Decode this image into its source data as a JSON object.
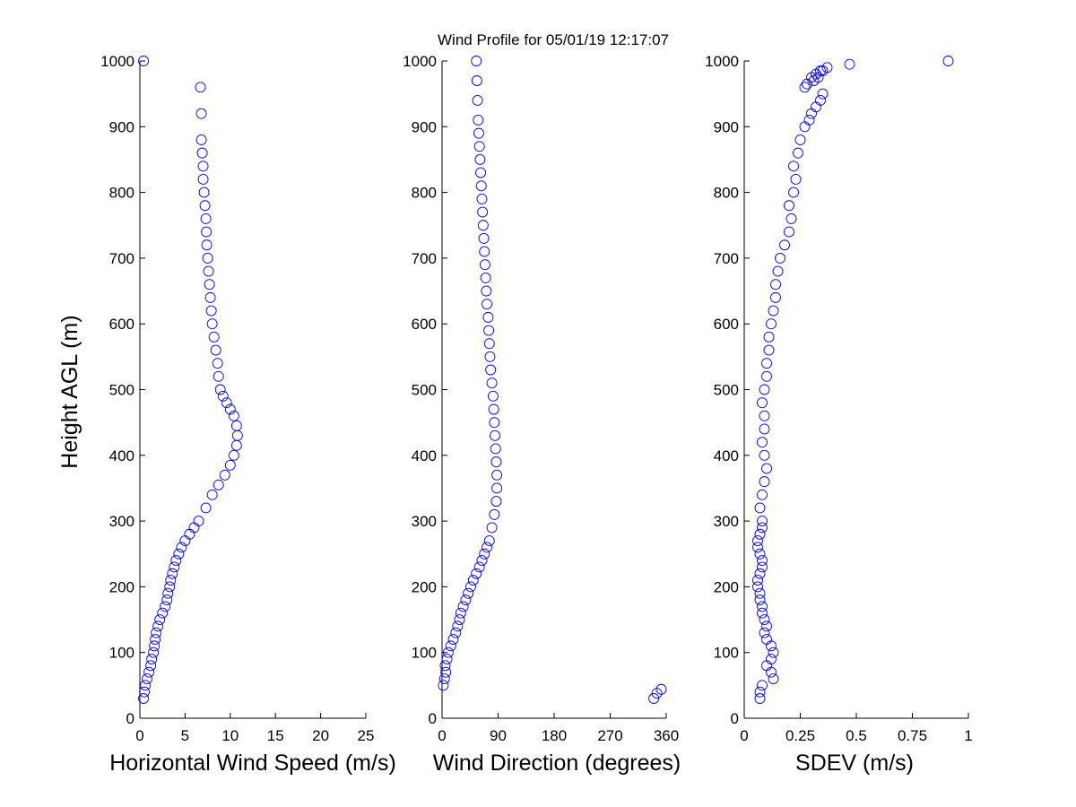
{
  "figure": {
    "title": "Wind Profile for  05/01/19 12:17:07"
  },
  "chart_data": [
    {
      "type": "scatter",
      "xlabel": "Horizontal Wind Speed (m/s)",
      "ylabel": "Height AGL (m)",
      "xlim": [
        0,
        25
      ],
      "ylim": [
        0,
        1000
      ],
      "xticks": [
        0,
        5,
        10,
        15,
        20,
        25
      ],
      "yticks": [
        0,
        100,
        200,
        300,
        400,
        500,
        600,
        700,
        800,
        900,
        1000
      ],
      "xtick_labels": [
        "0",
        "5",
        "10",
        "15",
        "20",
        "25"
      ],
      "ytick_labels": [
        "0",
        "100",
        "200",
        "300",
        "400",
        "500",
        "600",
        "700",
        "800",
        "900",
        "1000"
      ],
      "grid": false,
      "marker": "open-circle",
      "color": "#0000ff",
      "series": [
        {
          "x": [
            0.4,
            0.5,
            0.6,
            0.8,
            1.0,
            1.2,
            1.3,
            1.5,
            1.6,
            1.7,
            1.8,
            2.0,
            2.2,
            2.5,
            2.8,
            3.0,
            3.1,
            3.3,
            3.4,
            3.6,
            3.8,
            4.0,
            4.3,
            4.6,
            5.0,
            5.5,
            6.0,
            6.5,
            7.3,
            8.0,
            8.7,
            9.4,
            10.0,
            10.4,
            10.7,
            10.8,
            10.7,
            10.4,
            10.0,
            9.6,
            9.2,
            8.9,
            8.7,
            8.6,
            8.4,
            8.2,
            8.0,
            7.9,
            7.8,
            7.7,
            7.6,
            7.5,
            7.4,
            7.35,
            7.3,
            7.2,
            7.1,
            7.0,
            7.0,
            6.9,
            6.8,
            6.8,
            6.7,
            0.4
          ],
          "y": [
            30,
            40,
            50,
            60,
            70,
            80,
            90,
            100,
            110,
            120,
            130,
            140,
            150,
            160,
            170,
            180,
            190,
            200,
            210,
            220,
            230,
            240,
            250,
            260,
            270,
            280,
            290,
            300,
            320,
            340,
            355,
            370,
            385,
            400,
            415,
            430,
            445,
            460,
            470,
            480,
            490,
            500,
            520,
            540,
            560,
            580,
            600,
            620,
            640,
            660,
            680,
            700,
            720,
            740,
            760,
            780,
            800,
            820,
            840,
            860,
            880,
            920,
            960,
            1000
          ]
        }
      ]
    },
    {
      "type": "scatter",
      "xlabel": "Wind Direction (degrees)",
      "xlim": [
        0,
        360
      ],
      "ylim": [
        0,
        1000
      ],
      "xticks": [
        0,
        90,
        180,
        270,
        360
      ],
      "yticks": [
        0,
        100,
        200,
        300,
        400,
        500,
        600,
        700,
        800,
        900,
        1000
      ],
      "xtick_labels": [
        "0",
        "90",
        "180",
        "270",
        "360"
      ],
      "ytick_labels": [
        "0",
        "100",
        "200",
        "300",
        "400",
        "500",
        "600",
        "700",
        "800",
        "900",
        "1000"
      ],
      "grid": false,
      "marker": "open-circle",
      "color": "#0000ff",
      "series": [
        {
          "x": [
            340,
            345,
            352,
            2,
            4,
            6,
            5,
            8,
            10,
            14,
            18,
            22,
            25,
            28,
            30,
            34,
            38,
            42,
            46,
            50,
            55,
            60,
            64,
            68,
            72,
            76,
            80,
            84,
            87,
            88,
            88,
            87,
            86,
            85,
            84,
            83,
            82,
            80,
            78,
            77,
            76,
            75,
            74,
            72,
            71,
            70,
            69,
            68,
            67,
            66,
            65,
            64,
            63,
            62,
            61,
            60,
            59,
            58,
            57,
            56,
            55
          ],
          "y": [
            30,
            38,
            44,
            50,
            60,
            70,
            80,
            90,
            100,
            110,
            120,
            130,
            140,
            150,
            160,
            170,
            180,
            190,
            200,
            210,
            220,
            230,
            240,
            250,
            260,
            270,
            290,
            310,
            330,
            350,
            370,
            390,
            410,
            430,
            450,
            470,
            490,
            510,
            530,
            550,
            570,
            590,
            610,
            630,
            650,
            670,
            690,
            710,
            730,
            750,
            770,
            790,
            810,
            830,
            850,
            870,
            890,
            910,
            940,
            970,
            1000
          ]
        }
      ]
    },
    {
      "type": "scatter",
      "xlabel": "SDEV  (m/s)",
      "xlim": [
        0,
        1
      ],
      "ylim": [
        0,
        1000
      ],
      "xticks": [
        0,
        0.25,
        0.5,
        0.75,
        1
      ],
      "yticks": [
        0,
        100,
        200,
        300,
        400,
        500,
        600,
        700,
        800,
        900,
        1000
      ],
      "xtick_labels": [
        "0",
        "0.25",
        "0.5",
        "0.75",
        "1"
      ],
      "ytick_labels": [
        "0",
        "100",
        "200",
        "300",
        "400",
        "500",
        "600",
        "700",
        "800",
        "900",
        "1000"
      ],
      "grid": false,
      "marker": "open-circle",
      "color": "#0000ff",
      "series": [
        {
          "x": [
            0.07,
            0.07,
            0.08,
            0.13,
            0.12,
            0.1,
            0.12,
            0.13,
            0.12,
            0.1,
            0.09,
            0.1,
            0.09,
            0.08,
            0.08,
            0.07,
            0.07,
            0.06,
            0.06,
            0.07,
            0.08,
            0.08,
            0.07,
            0.06,
            0.06,
            0.07,
            0.08,
            0.08,
            0.07,
            0.08,
            0.09,
            0.1,
            0.09,
            0.08,
            0.09,
            0.09,
            0.08,
            0.09,
            0.1,
            0.1,
            0.11,
            0.11,
            0.12,
            0.13,
            0.14,
            0.14,
            0.15,
            0.16,
            0.18,
            0.2,
            0.21,
            0.2,
            0.22,
            0.23,
            0.22,
            0.24,
            0.25,
            0.27,
            0.29,
            0.3,
            0.32,
            0.34,
            0.35,
            0.27,
            0.31,
            0.33,
            0.35,
            0.37,
            0.28,
            0.3,
            0.32,
            0.34,
            0.47,
            0.91
          ],
          "y": [
            30,
            40,
            50,
            60,
            70,
            80,
            90,
            100,
            110,
            120,
            130,
            140,
            150,
            160,
            170,
            180,
            190,
            200,
            210,
            220,
            230,
            240,
            250,
            260,
            270,
            280,
            290,
            300,
            320,
            340,
            360,
            380,
            400,
            420,
            440,
            460,
            480,
            500,
            520,
            540,
            560,
            580,
            600,
            620,
            640,
            660,
            680,
            700,
            720,
            740,
            760,
            780,
            800,
            820,
            840,
            860,
            880,
            900,
            910,
            920,
            930,
            940,
            950,
            960,
            970,
            975,
            985,
            990,
            965,
            975,
            980,
            985,
            995,
            1000
          ]
        }
      ]
    }
  ]
}
